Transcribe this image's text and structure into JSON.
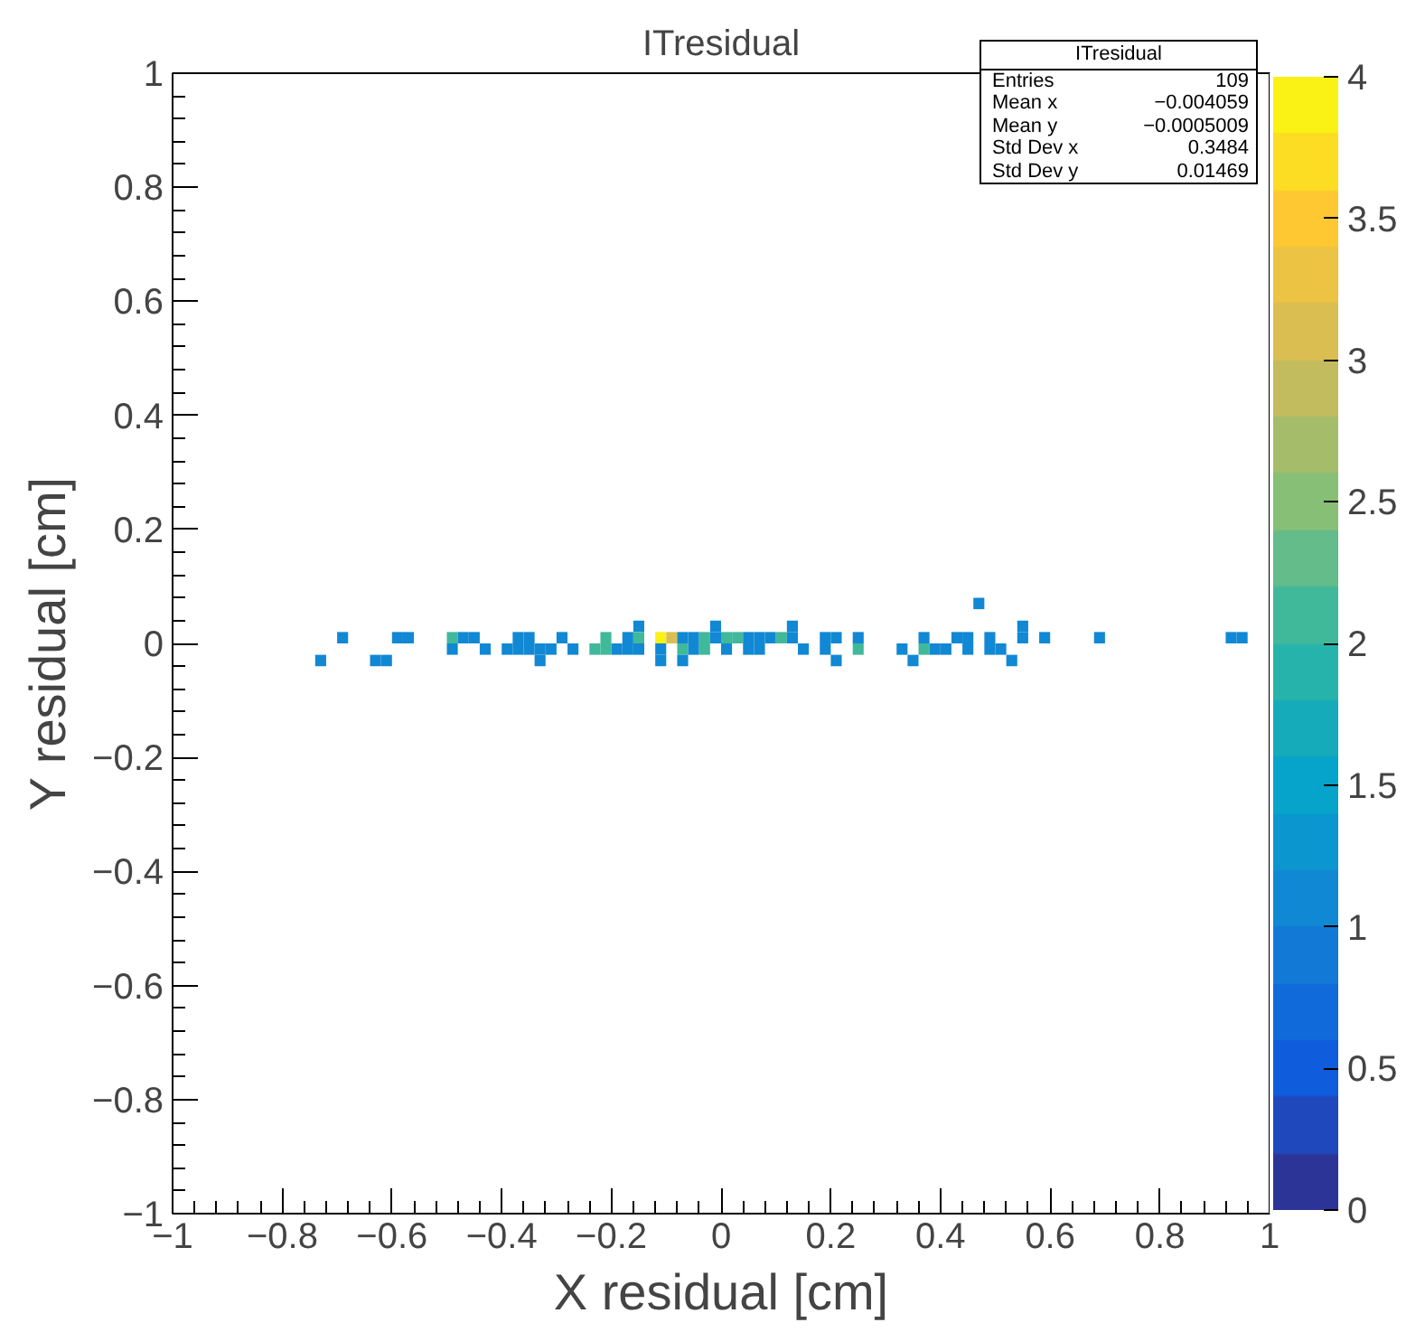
{
  "chart_data": {
    "type": "scatter",
    "title": "ITresidual",
    "xlabel": "X residual [cm]",
    "ylabel": "Y residual [cm]",
    "marker": "square",
    "grid": false,
    "x": [
      0.47,
      -0.15,
      -0.01,
      0.13,
      0.55,
      -0.69,
      -0.59,
      -0.57,
      -0.49,
      -0.47,
      -0.45,
      -0.37,
      -0.35,
      -0.29,
      -0.21,
      -0.17,
      -0.15,
      -0.11,
      -0.09,
      -0.07,
      -0.05,
      -0.03,
      -0.01,
      0.01,
      0.03,
      0.05,
      0.07,
      0.09,
      0.11,
      0.13,
      0.19,
      0.21,
      0.25,
      0.37,
      0.43,
      0.45,
      0.49,
      0.55,
      0.59,
      0.69,
      0.93,
      0.95,
      -0.49,
      -0.43,
      -0.39,
      -0.37,
      -0.35,
      -0.33,
      -0.31,
      -0.27,
      -0.23,
      -0.21,
      -0.19,
      -0.17,
      -0.15,
      -0.11,
      -0.07,
      -0.05,
      -0.03,
      0.01,
      0.05,
      0.07,
      0.15,
      0.19,
      0.25,
      0.33,
      0.37,
      0.39,
      0.41,
      0.45,
      0.49,
      0.51,
      -0.73,
      -0.63,
      -0.61,
      -0.33,
      -0.11,
      -0.07,
      0.21,
      0.35,
      0.53
    ],
    "values": [
      0.07,
      0.03,
      0.03,
      0.03,
      0.03,
      0.01,
      0.01,
      0.01,
      0.01,
      0.01,
      0.01,
      0.01,
      0.01,
      0.01,
      0.01,
      0.01,
      0.01,
      0.01,
      0.01,
      0.01,
      0.01,
      0.01,
      0.01,
      0.01,
      0.01,
      0.01,
      0.01,
      0.01,
      0.01,
      0.01,
      0.01,
      0.01,
      0.01,
      0.01,
      0.01,
      0.01,
      0.01,
      0.01,
      0.01,
      0.01,
      0.01,
      0.01,
      -0.01,
      -0.01,
      -0.01,
      -0.01,
      -0.01,
      -0.01,
      -0.01,
      -0.01,
      -0.01,
      -0.01,
      -0.01,
      -0.01,
      -0.01,
      -0.01,
      -0.01,
      -0.01,
      -0.01,
      -0.01,
      -0.01,
      -0.01,
      -0.01,
      -0.01,
      -0.01,
      -0.01,
      -0.01,
      -0.01,
      -0.01,
      -0.01,
      -0.01,
      -0.01,
      -0.03,
      -0.03,
      -0.03,
      -0.03,
      -0.03,
      -0.03,
      -0.03,
      -0.03,
      -0.03
    ],
    "cvalues": [
      1,
      1,
      1,
      1,
      1,
      1,
      1,
      1,
      2,
      1,
      1,
      1,
      1,
      1,
      2,
      1,
      2,
      4,
      3,
      1,
      1,
      2,
      1,
      2,
      2,
      1,
      1,
      1,
      2,
      1,
      1,
      1,
      1,
      1,
      1,
      1,
      1,
      1,
      1,
      1,
      1,
      1,
      1,
      1,
      1,
      1,
      1,
      1,
      1,
      1,
      2,
      2,
      1,
      1,
      1,
      1,
      2,
      1,
      2,
      1,
      1,
      1,
      1,
      1,
      2,
      1,
      2,
      1,
      1,
      1,
      1,
      1,
      1,
      1,
      1,
      1,
      1,
      1,
      1,
      1,
      1
    ],
    "xlim": [
      -1,
      1
    ],
    "ylim": [
      -1,
      1
    ],
    "xticks": [
      {
        "value": -1,
        "label": "−1"
      },
      {
        "value": -0.8,
        "label": "−0.8"
      },
      {
        "value": -0.6,
        "label": "−0.6"
      },
      {
        "value": -0.4,
        "label": "−0.4"
      },
      {
        "value": -0.2,
        "label": "−0.2"
      },
      0,
      0.2,
      0.4,
      0.6,
      0.8,
      1
    ],
    "yticks": [
      {
        "value": -1,
        "label": "−1"
      },
      {
        "value": -0.8,
        "label": "−0.8"
      },
      {
        "value": -0.6,
        "label": "−0.6"
      },
      {
        "value": -0.4,
        "label": "−0.4"
      },
      {
        "value": -0.2,
        "label": "−0.2"
      },
      0,
      0.2,
      0.4,
      0.6,
      0.8,
      1
    ],
    "clim": [
      0,
      4
    ],
    "cticks": [
      0,
      0.5,
      1,
      1.5,
      2,
      2.5,
      3,
      3.5,
      4
    ],
    "annotations": [
      "ITresidual",
      "Entries",
      "109",
      "Mean x",
      "−0.004059",
      "Mean y",
      "−0.0005009",
      "Std Dev x",
      "0.3484",
      "Std Dev y",
      "0.01469"
    ]
  }
}
